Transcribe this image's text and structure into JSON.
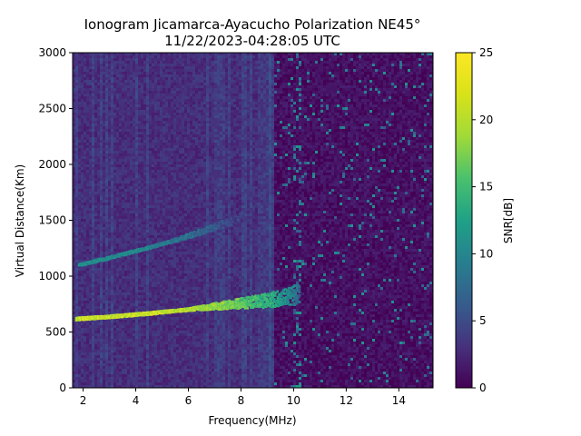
{
  "chart_data": {
    "type": "heatmap",
    "title": "Ionogram Jicamarca-Ayacucho Polarization NE45°",
    "subtitle": "11/22/2023-04:28:05 UTC",
    "xlabel": "Frequency(MHz)",
    "ylabel": "Virtual Distance(Km)",
    "xlim": [
      1.6,
      15.3
    ],
    "ylim": [
      0,
      3000
    ],
    "x_ticks": [
      2,
      4,
      6,
      8,
      10,
      12,
      14
    ],
    "y_ticks": [
      0,
      500,
      1000,
      1500,
      2000,
      2500,
      3000
    ],
    "colorbar": {
      "label": "SNR[dB]",
      "range": [
        0,
        25
      ],
      "ticks": [
        0,
        5,
        10,
        15,
        20,
        25
      ],
      "colormap": "viridis"
    },
    "traces": [
      {
        "x": [
          1.7,
          3.0,
          4.5,
          6.0,
          7.5,
          9.0,
          9.8,
          10.2
        ],
        "y": [
          620,
          640,
          670,
          705,
          735,
          760,
          790,
          800
        ],
        "snr": [
          25,
          25,
          25,
          24,
          22,
          18,
          14,
          10
        ]
      },
      {
        "x": [
          1.8,
          3.0,
          4.5,
          6.0,
          7.2,
          8.0
        ],
        "y": [
          1100,
          1170,
          1260,
          1360,
          1450,
          1520
        ],
        "snr": [
          14,
          14,
          13,
          11,
          8,
          6
        ]
      }
    ]
  }
}
